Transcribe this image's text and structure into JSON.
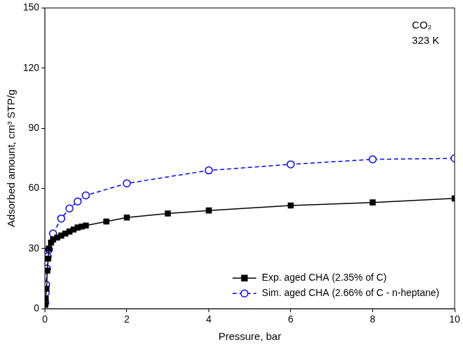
{
  "chart_data": {
    "type": "scatter",
    "x_label": "Pressure, bar",
    "y_label": "Adsorbed amount, cm³ STP/g",
    "annotations": [
      "CO₂",
      "323 K"
    ],
    "xlim": [
      0,
      10
    ],
    "xticks": [
      0,
      2,
      4,
      6,
      8,
      10
    ],
    "ylim": [
      0,
      150
    ],
    "yticks": [
      0,
      30,
      60,
      90,
      120,
      150
    ],
    "grid": false,
    "legend": "lower right",
    "series": [
      {
        "name": "Exp. aged CHA (2.35% of C)",
        "color": "#000000",
        "marker": "square",
        "line_style": "solid",
        "x": [
          0.01,
          0.02,
          0.04,
          0.06,
          0.08,
          0.1,
          0.15,
          0.2,
          0.3,
          0.4,
          0.5,
          0.6,
          0.7,
          0.8,
          0.9,
          1.0,
          1.5,
          2,
          3,
          4,
          6,
          8,
          10
        ],
        "values": [
          2,
          5,
          10,
          19,
          25,
          30,
          33,
          34.5,
          35.5,
          36.5,
          37.5,
          38.5,
          39.5,
          40.5,
          41,
          41.5,
          43.5,
          45.5,
          47.5,
          49,
          51.5,
          53,
          55
        ]
      },
      {
        "name": "Sim. aged CHA (2.66% of C - n-heptane)",
        "color": "#0000ff",
        "marker": "open circle",
        "line_style": "dashed",
        "x": [
          0.01,
          0.02,
          0.03,
          0.05,
          0.07,
          0.1,
          0.2,
          0.4,
          0.6,
          0.8,
          1.0,
          2,
          4,
          6,
          8,
          10
        ],
        "values": [
          3,
          8,
          12,
          20,
          26,
          29.5,
          37.5,
          45,
          50,
          53.5,
          56.5,
          62.5,
          69,
          72,
          74.5,
          75
        ]
      }
    ]
  }
}
